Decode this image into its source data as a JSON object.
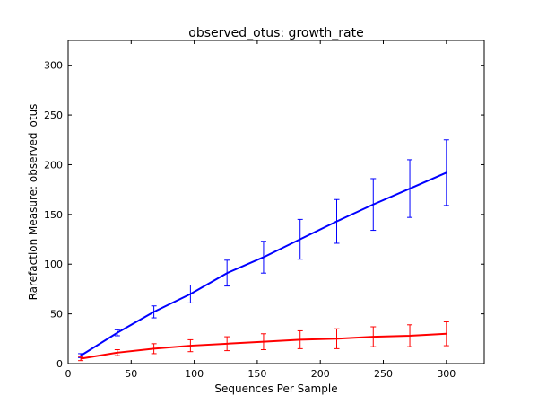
{
  "chart_data": {
    "type": "line",
    "title": "observed_otus: growth_rate",
    "xlabel": "Sequences Per Sample",
    "ylabel": "Rarefaction Measure: observed_otus",
    "xlim": [
      0,
      330
    ],
    "ylim": [
      0,
      325
    ],
    "xticks": [
      0,
      50,
      100,
      150,
      200,
      250,
      300
    ],
    "yticks": [
      0,
      50,
      100,
      150,
      200,
      250,
      300
    ],
    "grid": false,
    "legend": "none",
    "x": [
      10,
      39,
      68,
      97,
      126,
      155,
      184,
      213,
      242,
      271,
      300
    ],
    "series": [
      {
        "color": "#0000ff",
        "values": [
          8,
          31,
          52,
          70,
          91,
          107,
          125,
          143,
          160,
          176,
          192
        ],
        "errors": [
          2,
          3,
          6,
          9,
          13,
          16,
          20,
          22,
          26,
          29,
          33
        ]
      },
      {
        "color": "#ff0000",
        "values": [
          5,
          11,
          15,
          18,
          20,
          22,
          24,
          25,
          27,
          28,
          30
        ],
        "errors": [
          2,
          3,
          5,
          6,
          7,
          8,
          9,
          10,
          10,
          11,
          12
        ]
      }
    ]
  }
}
